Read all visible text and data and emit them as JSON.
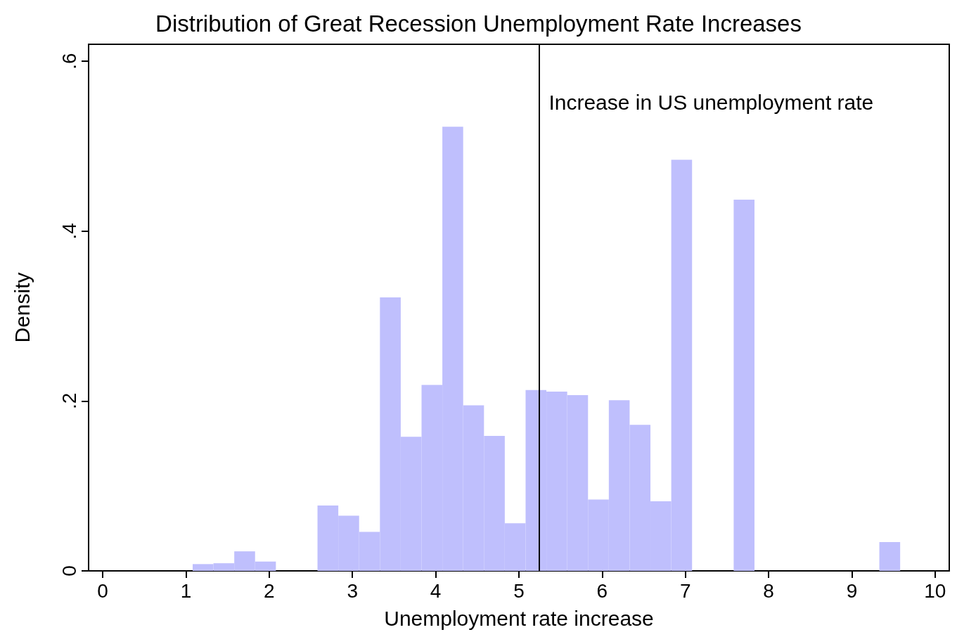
{
  "chart_data": {
    "type": "histogram",
    "title": "Distribution of Great Recession Unemployment Rate Increases",
    "xlabel": "Unemployment rate increase",
    "ylabel": "Density",
    "color": "#bfbffd",
    "bins": [
      1.08,
      1.33,
      1.58,
      1.83,
      2.08,
      2.33,
      2.58,
      2.83,
      3.08,
      3.33,
      3.58,
      3.83,
      4.08,
      4.33,
      4.58,
      4.83,
      5.08,
      5.33,
      5.58,
      5.83,
      6.08,
      6.33,
      6.58,
      6.83,
      7.08,
      7.33,
      7.58,
      7.83,
      8.08,
      8.33,
      8.58,
      8.83,
      9.08,
      9.33,
      9.58
    ],
    "values": [
      0.008,
      0.009,
      0.023,
      0.011,
      0,
      0,
      0.077,
      0.065,
      0.046,
      0.322,
      0.158,
      0.219,
      0.523,
      0.195,
      0.159,
      0.056,
      0.213,
      0.211,
      0.207,
      0.084,
      0.201,
      0.172,
      0.082,
      0.484,
      0,
      0,
      0.437,
      0,
      0,
      0,
      0,
      0,
      0,
      0.034
    ],
    "xlim": [
      -0.17,
      10.17
    ],
    "ylim": [
      0,
      0.62
    ],
    "xticks": [
      0,
      1,
      2,
      3,
      4,
      5,
      6,
      7,
      8,
      9,
      10
    ],
    "yticks": [
      {
        "value": 0,
        "label": "0"
      },
      {
        "value": 0.2,
        "label": ".2"
      },
      {
        "value": 0.4,
        "label": ".4"
      },
      {
        "value": 0.6,
        "label": ".6"
      }
    ],
    "ref_lines": [
      {
        "axis": "x",
        "value": 5.24,
        "label": "Increase in US unemployment rate",
        "color": "#000000"
      }
    ],
    "grid": false
  }
}
